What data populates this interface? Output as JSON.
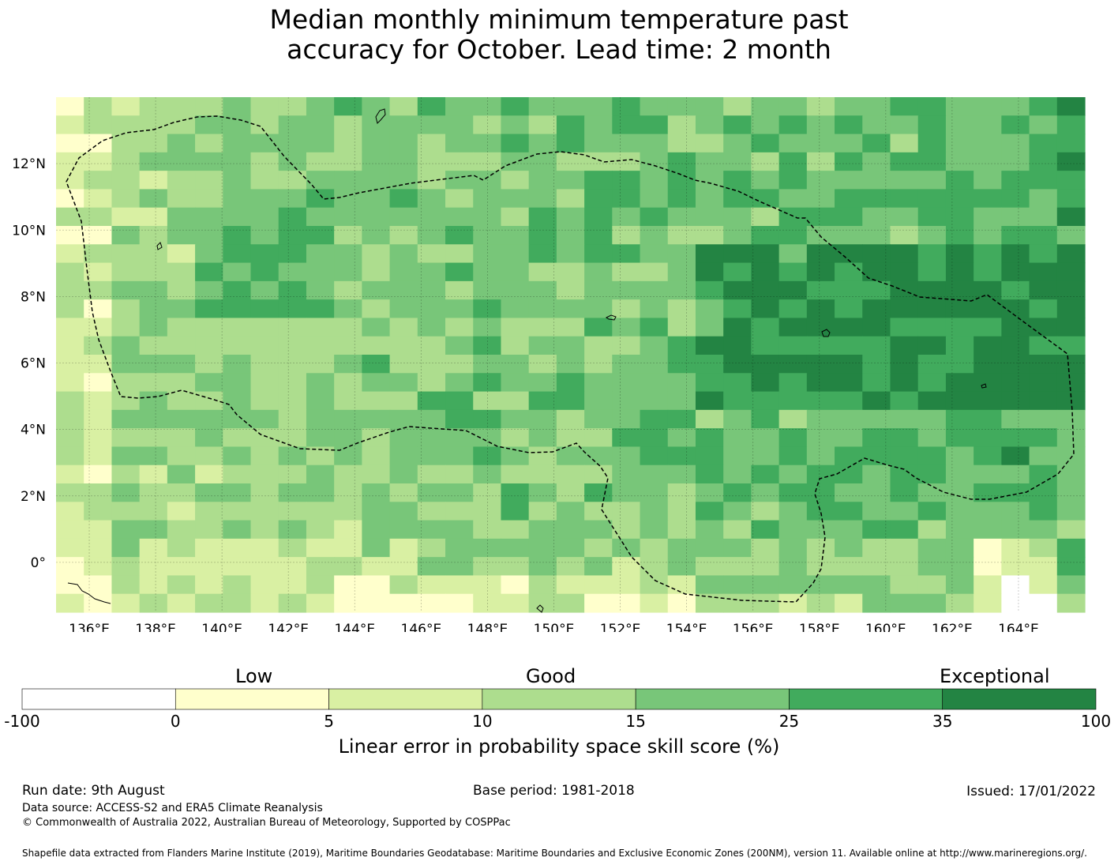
{
  "title": {
    "line1": "Median monthly minimum temperature past",
    "line2": "accuracy for October. Lead time: 2 month"
  },
  "map": {
    "lon_range": [
      135,
      166
    ],
    "lat_range": [
      -1.5,
      14
    ],
    "x_ticks": [
      "136°E",
      "138°E",
      "140°E",
      "142°E",
      "144°E",
      "146°E",
      "148°E",
      "150°E",
      "152°E",
      "154°E",
      "156°E",
      "158°E",
      "160°E",
      "162°E",
      "164°E"
    ],
    "y_ticks": [
      "12°N",
      "10°N",
      "8°N",
      "6°N",
      "4°N",
      "2°N",
      "0°"
    ],
    "grid": "on",
    "colors": [
      "#ffffff",
      "#ffffcc",
      "#d9f0a3",
      "#addd8e",
      "#78c679",
      "#41ab5d",
      "#238443"
    ]
  },
  "colorbar": {
    "categories": [
      "Low",
      "Good",
      "Exceptional"
    ],
    "boundaries": [
      "-100",
      "0",
      "5",
      "10",
      "15",
      "25",
      "35",
      "100"
    ],
    "label": "Linear error in probability space skill score (%)"
  },
  "footer": {
    "run_date": "Run date: 9th August",
    "base_period": "Base period: 1981-2018",
    "issued": "Issued: 17/01/2022",
    "data_source": "Data source: ACCESS-S2 and ERA5 Climate Reanalysis",
    "copyright": "© Commonwealth of Australia 2022, Australian Bureau of Meteorology, Supported by COSPPac",
    "shapefile": "Shapefile data extracted from Flanders Marine Institute (2019), Maritime Boundaries Geodatabase: Maritime Boundaries and Exclusive Economic Zones (200NM), version 11. Available online at http://www.marineregions.org/."
  }
}
